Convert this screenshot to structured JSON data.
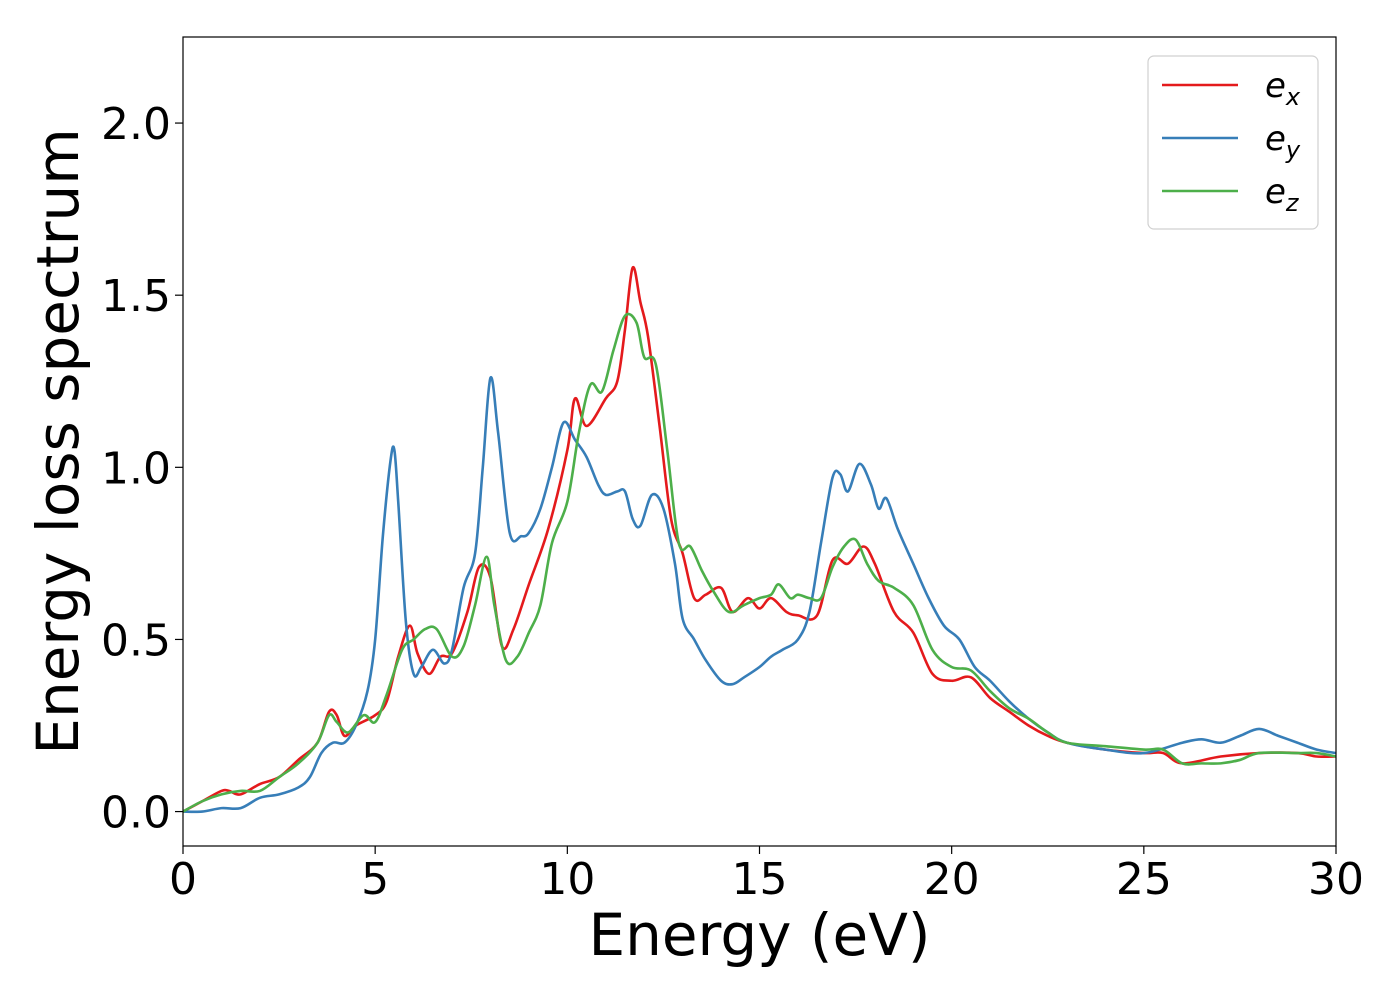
{
  "chart_data": {
    "type": "line",
    "xlabel": "Energy (eV)",
    "ylabel": "Energy loss spectrum",
    "xlim": [
      0,
      30
    ],
    "ylim": [
      -0.1,
      2.25
    ],
    "xticks": [
      0,
      5,
      10,
      15,
      20,
      25,
      30
    ],
    "xtick_labels": [
      "0",
      "5",
      "10",
      "15",
      "20",
      "25",
      "30"
    ],
    "yticks": [
      0.0,
      0.5,
      1.0,
      1.5,
      2.0
    ],
    "ytick_labels": [
      "0.0",
      "0.5",
      "1.0",
      "1.5",
      "2.0"
    ],
    "grid": false,
    "legend_position": "top-right",
    "series": [
      {
        "name": "e_x",
        "legend_base": "e",
        "legend_sub": "x",
        "color": "#e41a1c",
        "x": [
          0,
          0.5,
          1.0,
          1.2,
          1.5,
          2.0,
          2.5,
          3.0,
          3.5,
          3.8,
          4.0,
          4.2,
          4.5,
          5.0,
          5.3,
          5.6,
          5.9,
          6.1,
          6.4,
          6.7,
          7.0,
          7.4,
          7.7,
          8.0,
          8.3,
          8.6,
          9.0,
          9.5,
          10.0,
          10.2,
          10.5,
          11.0,
          11.3,
          11.5,
          11.7,
          11.9,
          12.1,
          12.4,
          12.7,
          13.0,
          13.3,
          13.6,
          14.0,
          14.3,
          14.7,
          15.0,
          15.3,
          15.7,
          16.0,
          16.5,
          16.9,
          17.3,
          17.7,
          18.0,
          18.5,
          19.0,
          19.5,
          20.0,
          20.5,
          21.0,
          21.5,
          22.0,
          22.5,
          23.0,
          24.0,
          25.0,
          25.5,
          26.0,
          27.0,
          28.0,
          29.0,
          29.5,
          30.0
        ],
        "y": [
          0.0,
          0.03,
          0.06,
          0.06,
          0.05,
          0.08,
          0.1,
          0.15,
          0.2,
          0.29,
          0.28,
          0.22,
          0.25,
          0.28,
          0.32,
          0.45,
          0.54,
          0.46,
          0.4,
          0.45,
          0.46,
          0.58,
          0.71,
          0.68,
          0.48,
          0.53,
          0.66,
          0.82,
          1.05,
          1.2,
          1.12,
          1.2,
          1.25,
          1.4,
          1.58,
          1.48,
          1.38,
          1.12,
          0.85,
          0.75,
          0.62,
          0.63,
          0.65,
          0.58,
          0.62,
          0.59,
          0.62,
          0.58,
          0.57,
          0.57,
          0.73,
          0.72,
          0.77,
          0.72,
          0.58,
          0.52,
          0.4,
          0.38,
          0.39,
          0.33,
          0.29,
          0.25,
          0.22,
          0.2,
          0.18,
          0.17,
          0.17,
          0.14,
          0.16,
          0.17,
          0.17,
          0.16,
          0.16
        ]
      },
      {
        "name": "e_y",
        "legend_base": "e",
        "legend_sub": "y",
        "color": "#377eb8",
        "x": [
          0,
          0.5,
          1.0,
          1.5,
          2.0,
          2.5,
          3.0,
          3.3,
          3.6,
          3.9,
          4.2,
          4.5,
          4.8,
          5.0,
          5.2,
          5.4,
          5.5,
          5.6,
          5.8,
          6.0,
          6.2,
          6.5,
          6.8,
          7.0,
          7.3,
          7.6,
          7.8,
          8.0,
          8.2,
          8.5,
          8.8,
          9.0,
          9.3,
          9.6,
          9.9,
          10.2,
          10.5,
          10.8,
          11.0,
          11.3,
          11.5,
          11.7,
          11.9,
          12.2,
          12.5,
          12.8,
          13.0,
          13.3,
          13.6,
          14.0,
          14.3,
          14.6,
          15.0,
          15.3,
          15.6,
          16.0,
          16.3,
          16.6,
          16.9,
          17.1,
          17.3,
          17.6,
          17.9,
          18.1,
          18.3,
          18.6,
          19.0,
          19.4,
          19.8,
          20.2,
          20.6,
          21.0,
          21.5,
          22.0,
          22.5,
          23.0,
          24.0,
          25.0,
          26.0,
          26.5,
          27.0,
          27.5,
          28.0,
          28.5,
          29.0,
          29.5,
          30.0
        ],
        "y": [
          0.0,
          0.0,
          0.01,
          0.01,
          0.04,
          0.05,
          0.07,
          0.1,
          0.17,
          0.2,
          0.2,
          0.25,
          0.35,
          0.5,
          0.8,
          1.02,
          1.05,
          0.9,
          0.55,
          0.4,
          0.42,
          0.47,
          0.43,
          0.47,
          0.65,
          0.75,
          1.0,
          1.26,
          1.1,
          0.81,
          0.8,
          0.81,
          0.88,
          1.0,
          1.13,
          1.08,
          1.03,
          0.95,
          0.92,
          0.93,
          0.93,
          0.85,
          0.83,
          0.92,
          0.88,
          0.72,
          0.56,
          0.5,
          0.44,
          0.38,
          0.37,
          0.39,
          0.42,
          0.45,
          0.47,
          0.5,
          0.58,
          0.78,
          0.97,
          0.98,
          0.93,
          1.01,
          0.95,
          0.88,
          0.91,
          0.82,
          0.72,
          0.62,
          0.54,
          0.5,
          0.42,
          0.38,
          0.32,
          0.27,
          0.23,
          0.2,
          0.18,
          0.17,
          0.2,
          0.21,
          0.2,
          0.22,
          0.24,
          0.22,
          0.2,
          0.18,
          0.17
        ]
      },
      {
        "name": "e_z",
        "legend_base": "e",
        "legend_sub": "z",
        "color": "#4daf4a",
        "x": [
          0,
          0.5,
          1.0,
          1.5,
          2.0,
          2.5,
          3.0,
          3.5,
          3.8,
          4.0,
          4.3,
          4.7,
          5.0,
          5.3,
          5.7,
          6.0,
          6.3,
          6.6,
          7.0,
          7.3,
          7.6,
          7.9,
          8.1,
          8.4,
          8.7,
          9.0,
          9.3,
          9.6,
          10.0,
          10.3,
          10.6,
          10.9,
          11.2,
          11.5,
          11.8,
          12.0,
          12.3,
          12.6,
          12.9,
          13.2,
          13.5,
          13.8,
          14.2,
          14.6,
          15.0,
          15.3,
          15.5,
          15.8,
          16.0,
          16.3,
          16.6,
          16.9,
          17.2,
          17.5,
          17.8,
          18.1,
          18.5,
          19.0,
          19.5,
          20.0,
          20.5,
          21.0,
          21.5,
          22.0,
          22.5,
          23.0,
          24.0,
          25.0,
          25.5,
          26.0,
          26.5,
          27.0,
          27.5,
          28.0,
          29.0,
          29.5,
          30.0
        ],
        "y": [
          0.0,
          0.03,
          0.05,
          0.06,
          0.06,
          0.1,
          0.14,
          0.2,
          0.28,
          0.26,
          0.23,
          0.28,
          0.26,
          0.34,
          0.47,
          0.5,
          0.53,
          0.53,
          0.45,
          0.48,
          0.6,
          0.74,
          0.6,
          0.44,
          0.45,
          0.52,
          0.6,
          0.78,
          0.9,
          1.1,
          1.24,
          1.22,
          1.34,
          1.44,
          1.42,
          1.32,
          1.3,
          1.05,
          0.78,
          0.77,
          0.7,
          0.64,
          0.58,
          0.6,
          0.62,
          0.63,
          0.66,
          0.62,
          0.63,
          0.62,
          0.62,
          0.71,
          0.77,
          0.79,
          0.72,
          0.67,
          0.65,
          0.6,
          0.47,
          0.42,
          0.41,
          0.35,
          0.3,
          0.27,
          0.23,
          0.2,
          0.19,
          0.18,
          0.18,
          0.14,
          0.14,
          0.14,
          0.15,
          0.17,
          0.17,
          0.17,
          0.16
        ]
      }
    ]
  }
}
